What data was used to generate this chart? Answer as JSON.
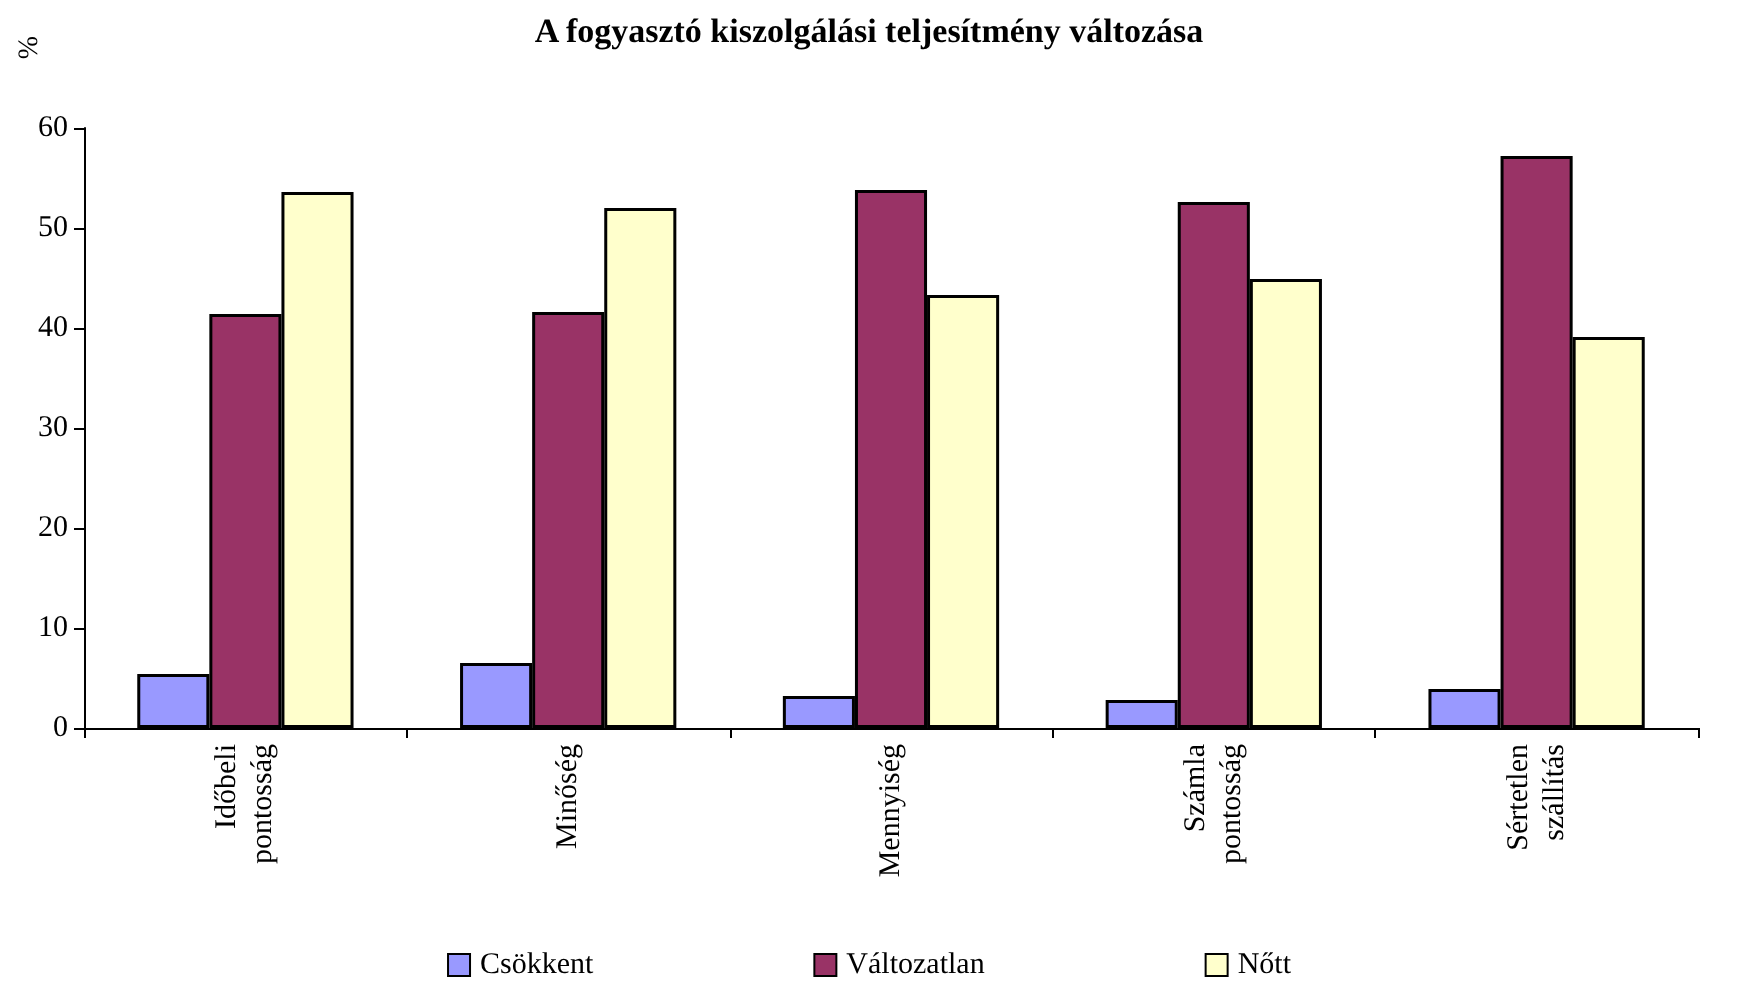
{
  "chart_data": {
    "type": "bar",
    "title": "A fogyasztó kiszolgálási teljesítmény változása",
    "ylabel": "%",
    "categories": [
      "Időbeli pontosság",
      "Minőség",
      "Mennyiség",
      "Számla pontosság",
      "Sértetlen szállítás"
    ],
    "series": [
      {
        "name": "Csökkent",
        "color": "#9999ff",
        "values": [
          5.4,
          6.5,
          3.2,
          2.8,
          3.9
        ]
      },
      {
        "name": "Változatlan",
        "color": "#993366",
        "values": [
          41.4,
          41.6,
          53.8,
          52.6,
          57.2
        ]
      },
      {
        "name": "Nőtt",
        "color": "#ffffcc",
        "values": [
          53.6,
          52.0,
          43.3,
          44.9,
          39.1
        ]
      }
    ],
    "ylim": [
      0,
      60
    ],
    "yticks": [
      0,
      10,
      20,
      30,
      40,
      50,
      60
    ],
    "grid": false,
    "legend": "bottom"
  }
}
